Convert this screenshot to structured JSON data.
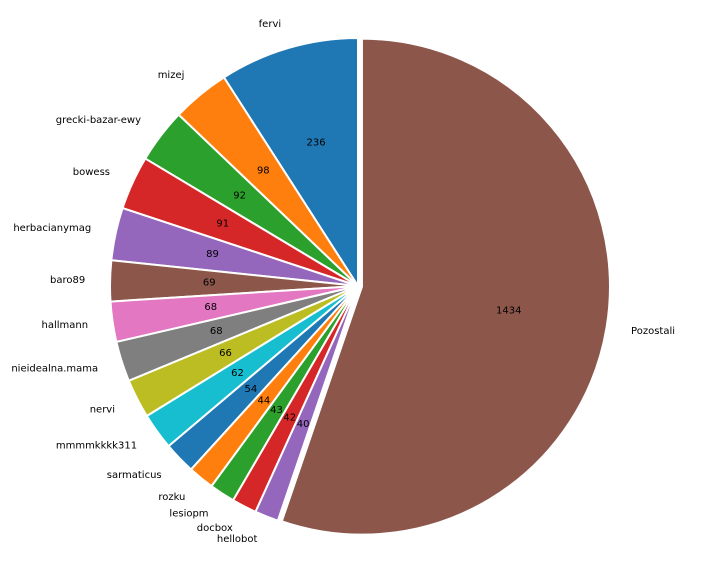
{
  "chart_data": {
    "type": "pie",
    "title": "",
    "categories": [
      "fervi",
      "mizej",
      "grecki-bazar-ewy",
      "bowess",
      "herbacianymag",
      "baro89",
      "hallmann",
      "nieidealna.mama",
      "nervi",
      "mmmmkkkk311",
      "sarmaticus",
      "rozku",
      "lesiopm",
      "docbox",
      "hellobot",
      "Pozostali"
    ],
    "values": [
      236,
      98,
      92,
      91,
      89,
      69,
      68,
      68,
      66,
      62,
      54,
      44,
      43,
      42,
      40,
      1434
    ],
    "colors": [
      "#1f77b4",
      "#ff7f0e",
      "#2ca02c",
      "#d62728",
      "#9467bd",
      "#8c564b",
      "#e377c2",
      "#7f7f7f",
      "#bcbd22",
      "#17becf",
      "#1f77b4",
      "#ff7f0e",
      "#2ca02c",
      "#d62728",
      "#9467bd",
      "#8c564b"
    ],
    "start_angle": "top",
    "direction": "counterclockwise",
    "explode_last_slice": true,
    "value_labels": true
  }
}
